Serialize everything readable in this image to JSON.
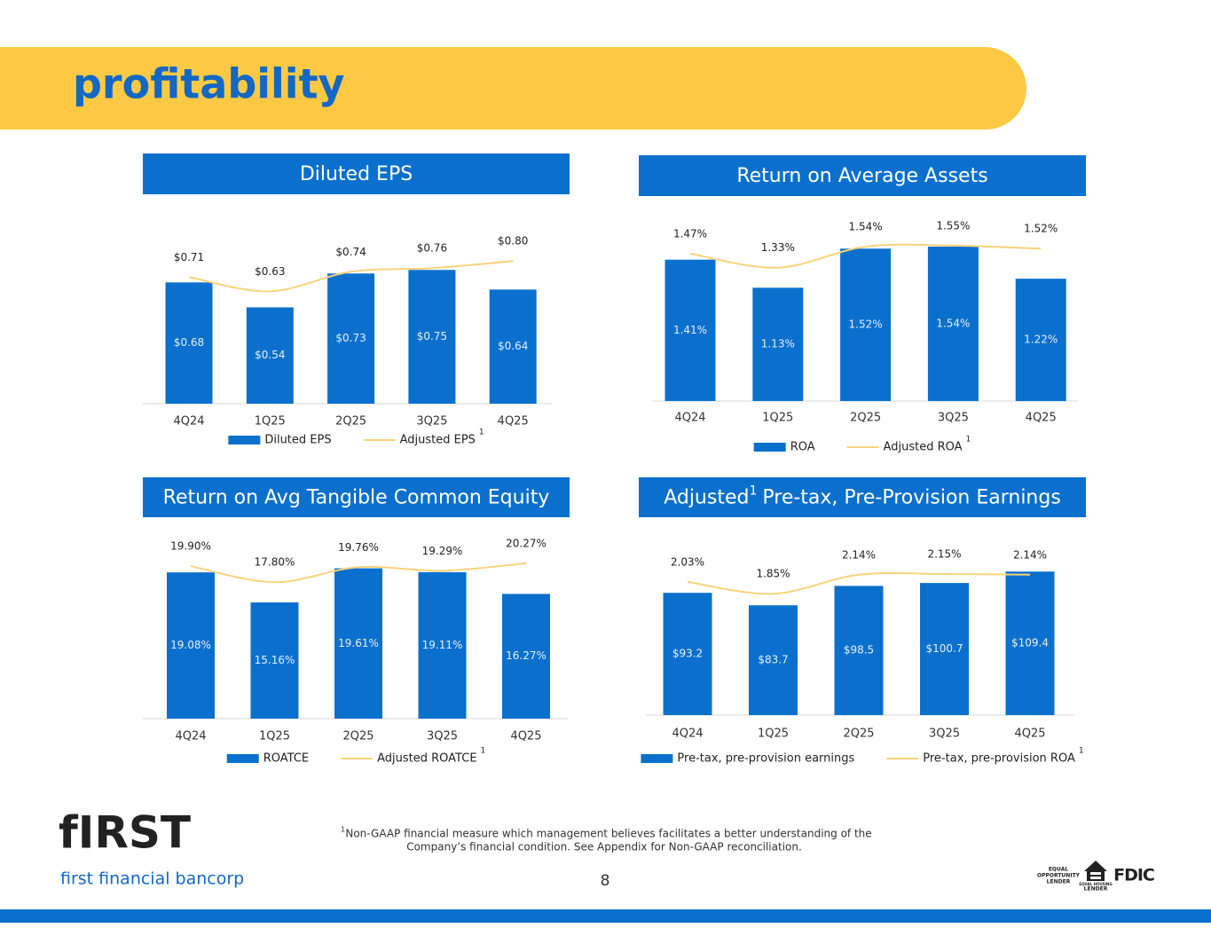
{
  "header": {
    "title": "profitability"
  },
  "chart_data": [
    {
      "type": "combo",
      "title": "Diluted EPS",
      "categories": [
        "4Q24",
        "1Q25",
        "2Q25",
        "3Q25",
        "4Q25"
      ],
      "ylim": [
        0,
        1
      ],
      "series": [
        {
          "name": "Diluted EPS",
          "kind": "bar",
          "color": "#0b70cd",
          "values": [
            0.68,
            0.54,
            0.73,
            0.75,
            0.64
          ],
          "value_labels": [
            "$0.68",
            "$0.54",
            "$0.73",
            "$0.75",
            "$0.64"
          ]
        },
        {
          "name": "Adjusted EPS",
          "kind": "line",
          "note": "1",
          "color": "#f8d37c",
          "values": [
            0.71,
            0.63,
            0.74,
            0.76,
            0.8
          ],
          "value_labels": [
            "$0.71",
            "$0.63",
            "$0.74",
            "$0.76",
            "$0.80"
          ]
        }
      ]
    },
    {
      "type": "combo",
      "title": "Return on Average Assets",
      "categories": [
        "4Q24",
        "1Q25",
        "2Q25",
        "3Q25",
        "4Q25"
      ],
      "ylim": [
        0,
        2
      ],
      "series": [
        {
          "name": "ROA",
          "kind": "bar",
          "color": "#0b70cd",
          "values": [
            1.41,
            1.13,
            1.52,
            1.54,
            1.22
          ],
          "value_labels": [
            "1.41%",
            "1.13%",
            "1.52%",
            "1.54%",
            "1.22%"
          ]
        },
        {
          "name": "Adjusted ROA",
          "kind": "line",
          "note": "1",
          "color": "#f8d37c",
          "values": [
            1.47,
            1.33,
            1.54,
            1.55,
            1.52
          ],
          "value_labels": [
            "1.47%",
            "1.33%",
            "1.54%",
            "1.55%",
            "1.52%"
          ]
        }
      ]
    },
    {
      "type": "combo",
      "title": "Return on Avg Tangible Common Equity",
      "categories": [
        "4Q24",
        "1Q25",
        "2Q25",
        "3Q25",
        "4Q25"
      ],
      "ylim": [
        0,
        25
      ],
      "series": [
        {
          "name": "ROATCE",
          "kind": "bar",
          "color": "#0b70cd",
          "values": [
            19.08,
            15.16,
            19.61,
            19.11,
            16.27
          ],
          "value_labels": [
            "19.08%",
            "15.16%",
            "19.61%",
            "19.11%",
            "16.27%"
          ]
        },
        {
          "name": "Adjusted ROATCE",
          "kind": "line",
          "note": "1",
          "color": "#f8d37c",
          "values": [
            19.9,
            17.8,
            19.76,
            19.29,
            20.27
          ],
          "value_labels": [
            "19.90%",
            "17.80%",
            "19.76%",
            "19.29%",
            "20.27%"
          ]
        }
      ]
    },
    {
      "type": "combo",
      "title": "Adjusted",
      "title_note": "1",
      "title_rest": "Pre-tax, Pre-Provision Earnings",
      "categories": [
        "4Q24",
        "1Q25",
        "2Q25",
        "3Q25",
        "4Q25"
      ],
      "ylim": [
        0,
        140
      ],
      "y2lim": [
        0,
        2.8
      ],
      "series": [
        {
          "name": "Pre-tax, pre-provision earnings",
          "kind": "bar",
          "color": "#0b70cd",
          "values": [
            93.2,
            83.7,
            98.5,
            100.7,
            109.4
          ],
          "value_labels": [
            "$93.2",
            "$83.7",
            "$98.5",
            "$100.7",
            "$109.4"
          ]
        },
        {
          "name": "Pre-tax, pre-provision ROA",
          "kind": "line",
          "axis": "y2",
          "note": "1",
          "color": "#f8d37c",
          "values": [
            2.03,
            1.85,
            2.14,
            2.15,
            2.14
          ],
          "value_labels": [
            "2.03%",
            "1.85%",
            "2.14%",
            "2.15%",
            "2.14%"
          ]
        }
      ]
    }
  ],
  "footer": {
    "logo": "fIRST",
    "brand": "first financial bancorp",
    "footnote_mark": "1",
    "footnote_lines": [
      "Non-GAAP financial measure which management believes facilitates a better understanding of the",
      "Company’s financial condition.  See Appendix for Non-GAAP reconciliation."
    ],
    "page": "8",
    "equal_opportunity": [
      "EQUAL",
      "OPPORTUNITY",
      "LENDER"
    ],
    "equal_housing": [
      "EQUAL HOUSING",
      "LENDER"
    ],
    "fdic": "FDIC"
  }
}
